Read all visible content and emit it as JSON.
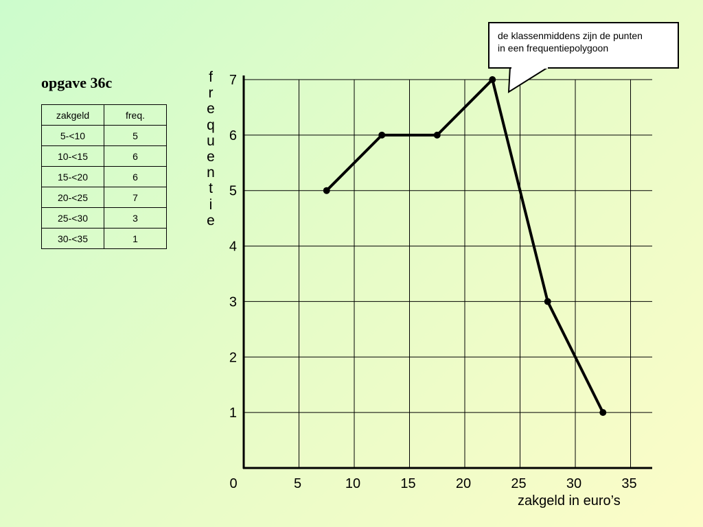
{
  "slide": {
    "title": "opgave 36c"
  },
  "table": {
    "headers": [
      "zakgeld",
      "freq."
    ],
    "rows": [
      [
        "5-<10",
        "5"
      ],
      [
        "10-<15",
        "6"
      ],
      [
        "15-<20",
        "6"
      ],
      [
        "20-<25",
        "7"
      ],
      [
        "25-<30",
        "3"
      ],
      [
        "30-<35",
        "1"
      ]
    ]
  },
  "callout": {
    "lines": [
      "de klassenmiddens zijn de punten",
      "in een frequentiepolygoon"
    ]
  },
  "chart_data": {
    "type": "line",
    "x": [
      7.5,
      12.5,
      17.5,
      22.5,
      27.5,
      32.5
    ],
    "y": [
      5,
      6,
      6,
      7,
      3,
      1
    ],
    "xlabel": "zakgeld in euro’s",
    "ylabel": "frequentie",
    "xlim": [
      0,
      37
    ],
    "ylim": [
      0,
      7
    ],
    "x_ticks": [
      0,
      5,
      10,
      15,
      20,
      25,
      30,
      35
    ],
    "y_ticks": [
      1,
      2,
      3,
      4,
      5,
      6,
      7
    ],
    "x_tick_labels": [
      "0",
      "5",
      "10",
      "15",
      "20",
      "25",
      "30",
      "35"
    ],
    "y_tick_labels": [
      "1",
      "2",
      "3",
      "4",
      "5",
      "6",
      "7"
    ],
    "grid": true,
    "line_color": "#000000"
  }
}
